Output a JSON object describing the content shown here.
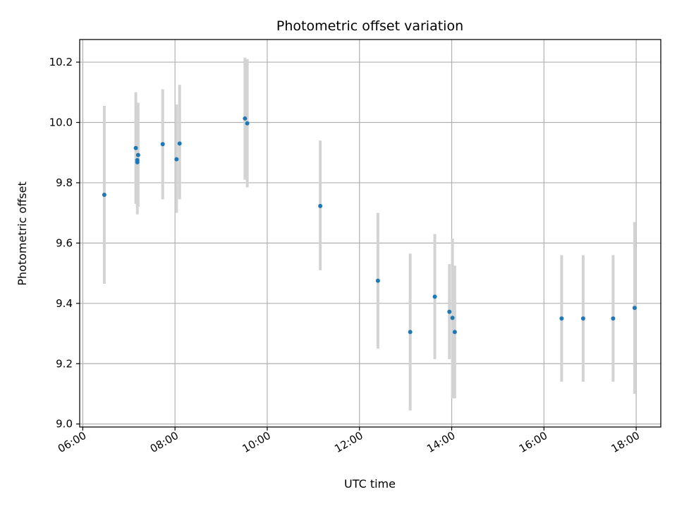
{
  "chart_data": {
    "type": "scatter",
    "title": "Photometric offset variation",
    "xlabel": "UTC time",
    "ylabel": "Photometric offset",
    "x_tick_labels": [
      "06:00",
      "08:00",
      "10:00",
      "12:00",
      "14:00",
      "16:00",
      "18:00"
    ],
    "x_ticks": [
      "06:00",
      "08:00",
      "10:00",
      "12:00",
      "14:00",
      "16:00",
      "18:00"
    ],
    "y_tick_labels": [
      "9.0",
      "9.2",
      "9.4",
      "9.6",
      "9.8",
      "10.0",
      "10.2"
    ],
    "y_ticks": [
      9.0,
      9.2,
      9.4,
      9.6,
      9.8,
      10.0,
      10.2
    ],
    "xlim": [
      "05:56",
      "18:32"
    ],
    "ylim": [
      8.99,
      10.275
    ],
    "grid": true,
    "series": [
      {
        "points": [
          {
            "x": "06:28",
            "y": 9.76,
            "err_low": 9.465,
            "err_high": 10.055
          },
          {
            "x": "07:09",
            "y": 9.915,
            "err_low": 9.73,
            "err_high": 10.1
          },
          {
            "x": "07:11",
            "y": 9.875,
            "err_low": 9.695,
            "err_high": 10.065
          },
          {
            "x": "07:11",
            "y": 9.868,
            "err_low": 9.72,
            "err_high": 10.065
          },
          {
            "x": "07:12",
            "y": 9.892,
            "err_low": 9.72,
            "err_high": 10.065
          },
          {
            "x": "07:44",
            "y": 9.928,
            "err_low": 9.745,
            "err_high": 10.11
          },
          {
            "x": "08:02",
            "y": 9.878,
            "err_low": 9.7,
            "err_high": 10.06
          },
          {
            "x": "08:06",
            "y": 9.93,
            "err_low": 9.745,
            "err_high": 10.125
          },
          {
            "x": "09:31",
            "y": 10.013,
            "err_low": 9.81,
            "err_high": 10.215
          },
          {
            "x": "09:34",
            "y": 9.997,
            "err_low": 9.785,
            "err_high": 10.21
          },
          {
            "x": "11:09",
            "y": 9.723,
            "err_low": 9.51,
            "err_high": 9.94
          },
          {
            "x": "12:24",
            "y": 9.475,
            "err_low": 9.25,
            "err_high": 9.7
          },
          {
            "x": "13:06",
            "y": 9.305,
            "err_low": 9.045,
            "err_high": 9.565
          },
          {
            "x": "13:38",
            "y": 9.422,
            "err_low": 9.215,
            "err_high": 9.63
          },
          {
            "x": "13:57",
            "y": 9.372,
            "err_low": 9.215,
            "err_high": 9.53
          },
          {
            "x": "14:01",
            "y": 9.352,
            "err_low": 9.085,
            "err_high": 9.615
          },
          {
            "x": "14:04",
            "y": 9.305,
            "err_low": 9.085,
            "err_high": 9.525
          },
          {
            "x": "16:23",
            "y": 9.35,
            "err_low": 9.14,
            "err_high": 9.56
          },
          {
            "x": "16:51",
            "y": 9.35,
            "err_low": 9.14,
            "err_high": 9.56
          },
          {
            "x": "17:30",
            "y": 9.35,
            "err_low": 9.14,
            "err_high": 9.56
          },
          {
            "x": "17:58",
            "y": 9.385,
            "err_low": 9.1,
            "err_high": 9.67
          }
        ]
      }
    ],
    "colors": {
      "point": "#1f77b4",
      "errorbar": "#d3d3d3",
      "grid": "#b0b0b0",
      "axes": "#000000"
    }
  }
}
